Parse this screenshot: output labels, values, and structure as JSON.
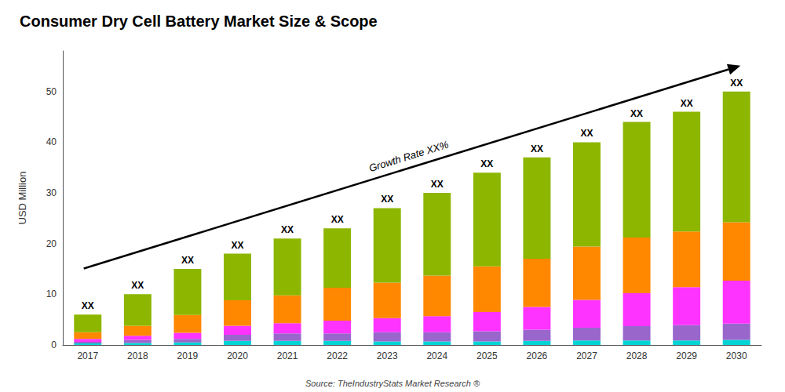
{
  "chart_data": {
    "type": "bar",
    "stacked": true,
    "title": "Consumer Dry Cell Battery Market Size & Scope",
    "ylabel": "USD Million",
    "source": "Source: TheIndustryStats Market Research ®",
    "bar_label": "XX",
    "growth_label": "Growth Rate XX%",
    "categories": [
      "2017",
      "2018",
      "2019",
      "2020",
      "2021",
      "2022",
      "2023",
      "2024",
      "2025",
      "2026",
      "2027",
      "2028",
      "2029",
      "2030"
    ],
    "series": [
      {
        "color": "#00D4D4",
        "values": [
          0.3,
          0.4,
          0.5,
          0.8,
          0.8,
          0.8,
          0.7,
          0.7,
          0.7,
          0.8,
          0.9,
          0.9,
          0.9,
          1.0
        ]
      },
      {
        "color": "#9966CC",
        "values": [
          0.3,
          0.6,
          0.7,
          1.2,
          1.5,
          1.5,
          1.8,
          1.8,
          2.0,
          2.2,
          2.5,
          2.8,
          3.0,
          3.2
        ]
      },
      {
        "color": "#FF33FF",
        "values": [
          0.6,
          0.8,
          1.2,
          1.8,
          2.0,
          2.5,
          2.8,
          3.2,
          3.8,
          4.5,
          5.5,
          6.5,
          7.5,
          8.5
        ]
      },
      {
        "color": "#FF8800",
        "values": [
          1.3,
          2.0,
          3.5,
          5.0,
          5.5,
          6.5,
          7.0,
          8.0,
          9.0,
          9.5,
          10.5,
          11.0,
          11.0,
          11.5
        ]
      },
      {
        "color": "#8DB600",
        "values": [
          3.5,
          6.2,
          9.1,
          9.2,
          11.2,
          11.7,
          14.7,
          16.3,
          18.5,
          20.0,
          20.6,
          22.8,
          23.6,
          25.8
        ]
      }
    ],
    "ylim": [
      0,
      58
    ],
    "yticks": [
      0,
      10,
      20,
      30,
      40,
      50
    ],
    "grid": false
  }
}
